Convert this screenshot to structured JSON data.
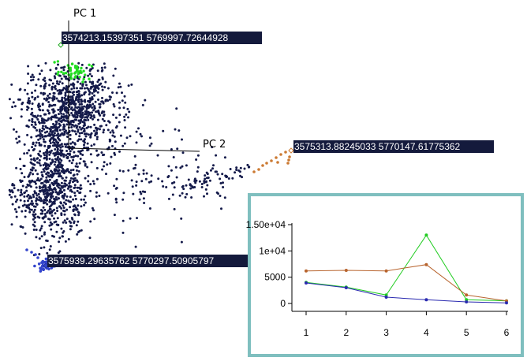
{
  "chart_data": [
    {
      "type": "scatter",
      "axes": [
        {
          "name": "PC 1"
        },
        {
          "name": "PC 2"
        }
      ],
      "point_labels": [
        {
          "text": "3574213.15397351 5769997.72644928",
          "color": "#22dd22"
        },
        {
          "text": "3575313.88245033 5770147.61775362",
          "color": "#cc7a33"
        },
        {
          "text": "3575939.29635762 5770297.50905797",
          "color": "#3344cc"
        }
      ],
      "cluster_colors": {
        "main": "#141a4a",
        "green": "#22dd22",
        "orange": "#cc7a33",
        "blue": "#3344cc"
      },
      "grid": false
    },
    {
      "type": "line",
      "x": [
        1,
        2,
        3,
        4,
        5,
        6
      ],
      "ytick_labels": [
        "0",
        "5000",
        "1e+04",
        "1.50e+04"
      ],
      "ylim": [
        0,
        15000
      ],
      "xlim": [
        1,
        6
      ],
      "grid": false,
      "series": [
        {
          "color": "#22cc22",
          "values": [
            4000,
            3100,
            1600,
            13000,
            700,
            500
          ]
        },
        {
          "color": "#b8642e",
          "values": [
            6200,
            6300,
            6200,
            7400,
            1600,
            500
          ]
        },
        {
          "color": "#2a2ab0",
          "values": [
            3900,
            3000,
            1200,
            700,
            300,
            100
          ]
        }
      ],
      "panel_border_color": "#7fbfbf"
    }
  ]
}
